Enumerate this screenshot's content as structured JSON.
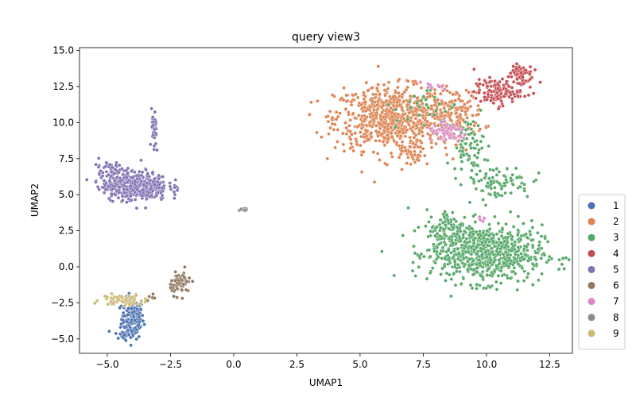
{
  "chart_data": {
    "type": "scatter",
    "title": "query view3",
    "xlabel": "UMAP1",
    "ylabel": "UMAP2",
    "xlim": [
      -6.1,
      13.4
    ],
    "ylim": [
      -6.0,
      15.2
    ],
    "xticks": [
      -5.0,
      -2.5,
      0.0,
      2.5,
      5.0,
      7.5,
      10.0,
      12.5
    ],
    "xtick_labels": [
      "−5.0",
      "−2.5",
      "0.0",
      "2.5",
      "5.0",
      "7.5",
      "10.0",
      "12.5"
    ],
    "yticks": [
      -5.0,
      -2.5,
      0.0,
      2.5,
      5.0,
      7.5,
      10.0,
      12.5,
      15.0
    ],
    "ytick_labels": [
      "−5.0",
      "−2.5",
      "0.0",
      "2.5",
      "5.0",
      "7.5",
      "10.0",
      "12.5",
      "15.0"
    ],
    "grid": false,
    "legend_position": "outside-right-bottom",
    "series": [
      {
        "name": "1",
        "color": "#4c72b0",
        "clusters": [
          {
            "center": [
              -4.0,
              -3.6
            ],
            "spread": [
              0.22,
              0.7
            ],
            "n": 160
          },
          {
            "center": [
              -4.4,
              -4.7
            ],
            "spread": [
              0.15,
              0.2
            ],
            "n": 20
          }
        ]
      },
      {
        "name": "2",
        "color": "#dd8452",
        "clusters": [
          {
            "center": [
              6.2,
              10.3
            ],
            "spread": [
              1.1,
              1.1
            ],
            "n": 700
          },
          {
            "center": [
              8.7,
              10.6
            ],
            "spread": [
              0.6,
              0.9
            ],
            "n": 160
          },
          {
            "center": [
              7.2,
              7.6
            ],
            "spread": [
              0.4,
              0.3
            ],
            "n": 30
          }
        ]
      },
      {
        "name": "3",
        "color": "#55a868",
        "clusters": [
          {
            "center": [
              10.0,
              0.9
            ],
            "spread": [
              1.1,
              1.0
            ],
            "n": 650
          },
          {
            "center": [
              8.6,
              2.4
            ],
            "spread": [
              0.5,
              0.8
            ],
            "n": 140
          },
          {
            "center": [
              10.4,
              5.9
            ],
            "spread": [
              0.7,
              0.6
            ],
            "n": 90
          },
          {
            "center": [
              9.3,
              8.4
            ],
            "spread": [
              0.3,
              0.9
            ],
            "n": 70
          },
          {
            "center": [
              7.6,
              11.0
            ],
            "spread": [
              0.6,
              0.8
            ],
            "n": 30
          }
        ]
      },
      {
        "name": "4",
        "color": "#c44e52",
        "clusters": [
          {
            "center": [
              10.4,
              12.1
            ],
            "spread": [
              0.45,
              0.45
            ],
            "n": 120
          },
          {
            "center": [
              11.3,
              13.3
            ],
            "spread": [
              0.25,
              0.5
            ],
            "n": 70
          }
        ]
      },
      {
        "name": "5",
        "color": "#8172b3",
        "clusters": [
          {
            "center": [
              -3.9,
              5.6
            ],
            "spread": [
              0.65,
              0.5
            ],
            "n": 420
          },
          {
            "center": [
              -4.9,
              6.9
            ],
            "spread": [
              0.3,
              0.3
            ],
            "n": 40
          },
          {
            "center": [
              -3.15,
              9.2
            ],
            "spread": [
              0.05,
              0.8
            ],
            "n": 40
          }
        ]
      },
      {
        "name": "6",
        "color": "#937860",
        "clusters": [
          {
            "center": [
              -2.1,
              -1.1
            ],
            "spread": [
              0.2,
              0.4
            ],
            "n": 70
          },
          {
            "center": [
              -3.2,
              -2.2
            ],
            "spread": [
              0.1,
              0.15
            ],
            "n": 8
          }
        ]
      },
      {
        "name": "7",
        "color": "#da8bc3",
        "clusters": [
          {
            "center": [
              8.5,
              9.3
            ],
            "spread": [
              0.4,
              0.3
            ],
            "n": 70
          },
          {
            "center": [
              7.9,
              12.4
            ],
            "spread": [
              0.4,
              0.2
            ],
            "n": 12
          },
          {
            "center": [
              9.8,
              3.3
            ],
            "spread": [
              0.1,
              0.1
            ],
            "n": 6
          }
        ]
      },
      {
        "name": "8",
        "color": "#8c8c8c",
        "clusters": [
          {
            "center": [
              0.4,
              3.95
            ],
            "spread": [
              0.12,
              0.08
            ],
            "n": 15
          }
        ]
      },
      {
        "name": "9",
        "color": "#ccb974",
        "clusters": [
          {
            "center": [
              -4.4,
              -2.3
            ],
            "spread": [
              0.4,
              0.2
            ],
            "n": 70
          }
        ]
      }
    ]
  }
}
